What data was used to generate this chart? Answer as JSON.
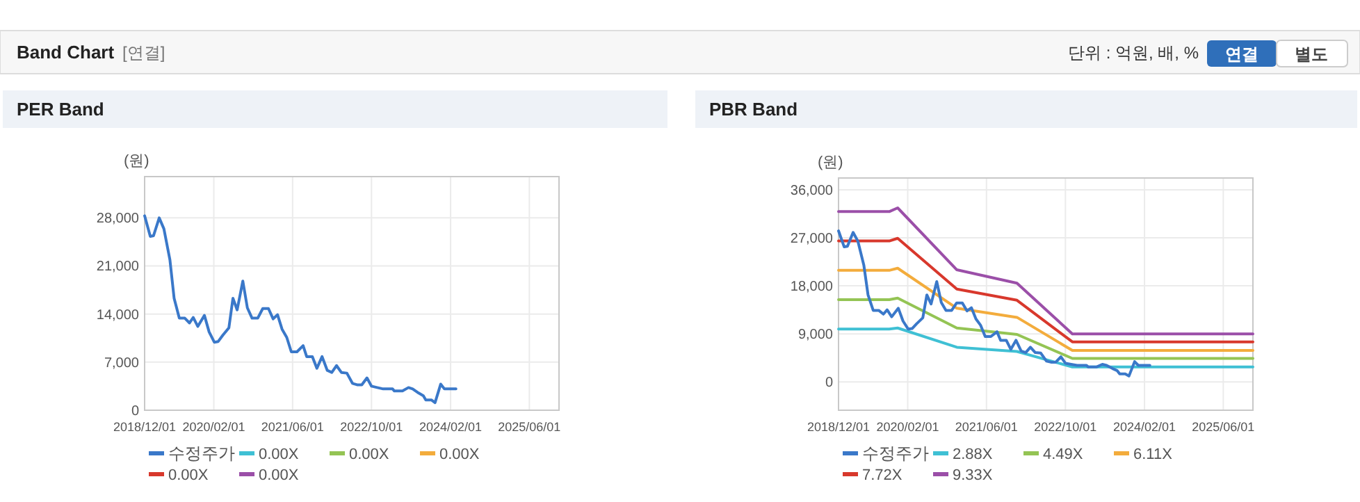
{
  "chart_data": [
    {
      "type": "other",
      "title": "Band Chart",
      "annotations": [
        "[연결]",
        "단위 : 억원, 배, %",
        "연결",
        "별도"
      ]
    },
    {
      "type": "line",
      "title": "PER Band",
      "ylabel": "(원)",
      "xlim": [
        "2018-12-01",
        "2025-12-01"
      ],
      "ylim": [
        0,
        34000
      ],
      "xticks": [
        {
          "value": "2018-12-01",
          "label": "2018/12/01"
        },
        {
          "value": "2020-02-01",
          "label": "2020/02/01"
        },
        {
          "value": "2021-06-01",
          "label": "2021/06/01"
        },
        {
          "value": "2022-10-01",
          "label": "2022/10/01"
        },
        {
          "value": "2024-02-01",
          "label": "2024/02/01"
        },
        {
          "value": "2025-06-01",
          "label": "2025/06/01"
        }
      ],
      "yticks": [
        {
          "value": 0,
          "label": "0"
        },
        {
          "value": 7000,
          "label": "7,000"
        },
        {
          "value": 14000,
          "label": "14,000"
        },
        {
          "value": 21000,
          "label": "21,000"
        },
        {
          "value": 28000,
          "label": "28,000"
        }
      ],
      "grid": true,
      "legend": "bottom",
      "marker": "none",
      "line_style": "solid",
      "series": [
        {
          "name": "수정주가",
          "color": "#3a78c9",
          "x": [
            "2018-12-01",
            "2019-01-05",
            "2019-01-25",
            "2019-03-01",
            "2019-03-30",
            "2019-05-06",
            "2019-06-01",
            "2019-07-03",
            "2019-08-06",
            "2019-09-04",
            "2019-09-27",
            "2019-10-25",
            "2019-12-05",
            "2020-01-03",
            "2020-02-04",
            "2020-02-28",
            "2020-03-27",
            "2020-05-04",
            "2020-05-29",
            "2020-06-24",
            "2020-07-29",
            "2020-08-26",
            "2020-09-24",
            "2020-10-29",
            "2020-11-29",
            "2021-01-03",
            "2021-02-01",
            "2021-02-28",
            "2021-03-28",
            "2021-04-26",
            "2021-05-24",
            "2021-06-28",
            "2021-08-05",
            "2021-08-27",
            "2021-10-01",
            "2021-10-29",
            "2021-11-30",
            "2022-01-01",
            "2022-01-29",
            "2022-02-27",
            "2022-03-29",
            "2022-05-02",
            "2022-06-06",
            "2022-07-04",
            "2022-08-02",
            "2022-09-03",
            "2022-10-01",
            "2022-11-05",
            "2022-12-12",
            "2023-02-08",
            "2023-02-19",
            "2023-04-10",
            "2023-05-17",
            "2023-06-12",
            "2023-07-19",
            "2023-08-17",
            "2023-09-01",
            "2023-10-05",
            "2023-10-28",
            "2023-12-02",
            "2023-12-25",
            "2024-03-05"
          ],
          "values": [
            28300,
            25300,
            25400,
            28000,
            26400,
            21900,
            16300,
            13400,
            13400,
            12700,
            13500,
            12200,
            13800,
            11400,
            9900,
            10000,
            10900,
            12000,
            16300,
            14600,
            18800,
            14900,
            13400,
            13400,
            14800,
            14800,
            13300,
            13900,
            11800,
            10600,
            8500,
            8500,
            9400,
            7800,
            7800,
            6100,
            7800,
            5800,
            5500,
            6500,
            5500,
            5400,
            3900,
            3700,
            3700,
            4700,
            3500,
            3300,
            3100,
            3100,
            2800,
            2800,
            3300,
            3100,
            2500,
            2100,
            1500,
            1500,
            1100,
            3800,
            3100,
            3100
          ]
        },
        {
          "name": "0.00X",
          "color": "#3fc0d4"
        },
        {
          "name": "0.00X",
          "color": "#94c454"
        },
        {
          "name": "0.00X",
          "color": "#f3ac3c"
        },
        {
          "name": "0.00X",
          "color": "#d8382c"
        },
        {
          "name": "0.00X",
          "color": "#9b4fa8"
        }
      ]
    },
    {
      "type": "line",
      "title": "PBR Band",
      "ylabel": "(원)",
      "xlim": [
        "2018-12-01",
        "2025-12-01"
      ],
      "ylim": [
        -5300,
        38200
      ],
      "xticks": [
        {
          "value": "2018-12-01",
          "label": "2018/12/01"
        },
        {
          "value": "2020-02-01",
          "label": "2020/02/01"
        },
        {
          "value": "2021-06-01",
          "label": "2021/06/01"
        },
        {
          "value": "2022-10-01",
          "label": "2022/10/01"
        },
        {
          "value": "2024-02-01",
          "label": "2024/02/01"
        },
        {
          "value": "2025-06-01",
          "label": "2025/06/01"
        }
      ],
      "yticks": [
        {
          "value": 0,
          "label": "0"
        },
        {
          "value": 9000,
          "label": "9,000"
        },
        {
          "value": 18000,
          "label": "18,000"
        },
        {
          "value": 27000,
          "label": "27,000"
        },
        {
          "value": 36000,
          "label": "36,000"
        }
      ],
      "grid": true,
      "legend": "bottom",
      "marker": "none",
      "line_style": "solid",
      "series": [
        {
          "name": "수정주가",
          "color": "#3a78c9",
          "x": [
            "2018-12-01",
            "2019-01-05",
            "2019-01-25",
            "2019-03-01",
            "2019-03-30",
            "2019-05-06",
            "2019-06-01",
            "2019-07-03",
            "2019-08-06",
            "2019-09-04",
            "2019-09-27",
            "2019-10-25",
            "2019-12-05",
            "2020-01-03",
            "2020-02-04",
            "2020-02-28",
            "2020-03-27",
            "2020-05-04",
            "2020-05-29",
            "2020-06-24",
            "2020-07-29",
            "2020-08-26",
            "2020-09-24",
            "2020-10-29",
            "2020-11-29",
            "2021-01-03",
            "2021-02-01",
            "2021-02-28",
            "2021-03-28",
            "2021-04-26",
            "2021-05-24",
            "2021-06-28",
            "2021-08-05",
            "2021-08-27",
            "2021-10-01",
            "2021-10-29",
            "2021-11-30",
            "2022-01-01",
            "2022-01-29",
            "2022-02-27",
            "2022-03-29",
            "2022-05-02",
            "2022-06-06",
            "2022-07-04",
            "2022-08-02",
            "2022-09-03",
            "2022-10-01",
            "2022-11-05",
            "2022-12-12",
            "2023-02-08",
            "2023-02-19",
            "2023-04-10",
            "2023-05-17",
            "2023-06-12",
            "2023-07-19",
            "2023-08-17",
            "2023-09-01",
            "2023-10-05",
            "2023-10-28",
            "2023-12-02",
            "2023-12-25",
            "2024-03-05"
          ],
          "values": [
            28300,
            25300,
            25400,
            28000,
            26400,
            21900,
            16300,
            13400,
            13400,
            12700,
            13500,
            12200,
            13800,
            11400,
            9900,
            10000,
            10900,
            12000,
            16300,
            14600,
            18800,
            14900,
            13400,
            13400,
            14800,
            14800,
            13300,
            13900,
            11800,
            10600,
            8500,
            8500,
            9400,
            7800,
            7800,
            6100,
            7800,
            5800,
            5500,
            6500,
            5500,
            5400,
            3900,
            3700,
            3700,
            4700,
            3500,
            3300,
            3100,
            3100,
            2800,
            2800,
            3300,
            3100,
            2500,
            2100,
            1500,
            1500,
            1100,
            3800,
            3100,
            3100
          ]
        },
        {
          "name": "2.88X",
          "color": "#3fc0d4",
          "x": [
            "2018-12-01",
            "2019-10-10",
            "2019-12-01",
            "2020-11-30",
            "2021-12-06",
            "2022-11-13",
            "2025-12-01"
          ],
          "values": [
            9900,
            9900,
            10100,
            6500,
            5700,
            2800,
            2800
          ]
        },
        {
          "name": "4.49X",
          "color": "#94c454",
          "x": [
            "2018-12-01",
            "2019-10-10",
            "2019-12-01",
            "2020-11-30",
            "2021-12-06",
            "2022-11-13",
            "2025-12-01"
          ],
          "values": [
            15400,
            15400,
            15700,
            10100,
            8900,
            4400,
            4400
          ]
        },
        {
          "name": "6.11X",
          "color": "#f3ac3c",
          "x": [
            "2018-12-01",
            "2019-10-10",
            "2019-12-01",
            "2020-11-30",
            "2021-12-06",
            "2022-11-13",
            "2025-12-01"
          ],
          "values": [
            20900,
            20900,
            21300,
            13800,
            12100,
            5900,
            5900
          ]
        },
        {
          "name": "7.72X",
          "color": "#d8382c",
          "x": [
            "2018-12-01",
            "2019-10-10",
            "2019-12-01",
            "2020-11-30",
            "2021-12-06",
            "2022-11-13",
            "2025-12-01"
          ],
          "values": [
            26400,
            26400,
            26900,
            17400,
            15300,
            7500,
            7500
          ]
        },
        {
          "name": "9.33X",
          "color": "#9b4fa8",
          "x": [
            "2018-12-01",
            "2019-10-10",
            "2019-12-01",
            "2020-11-30",
            "2021-12-06",
            "2022-11-13",
            "2025-12-01"
          ],
          "values": [
            31900,
            31900,
            32600,
            21000,
            18500,
            9000,
            9000
          ]
        }
      ]
    }
  ]
}
